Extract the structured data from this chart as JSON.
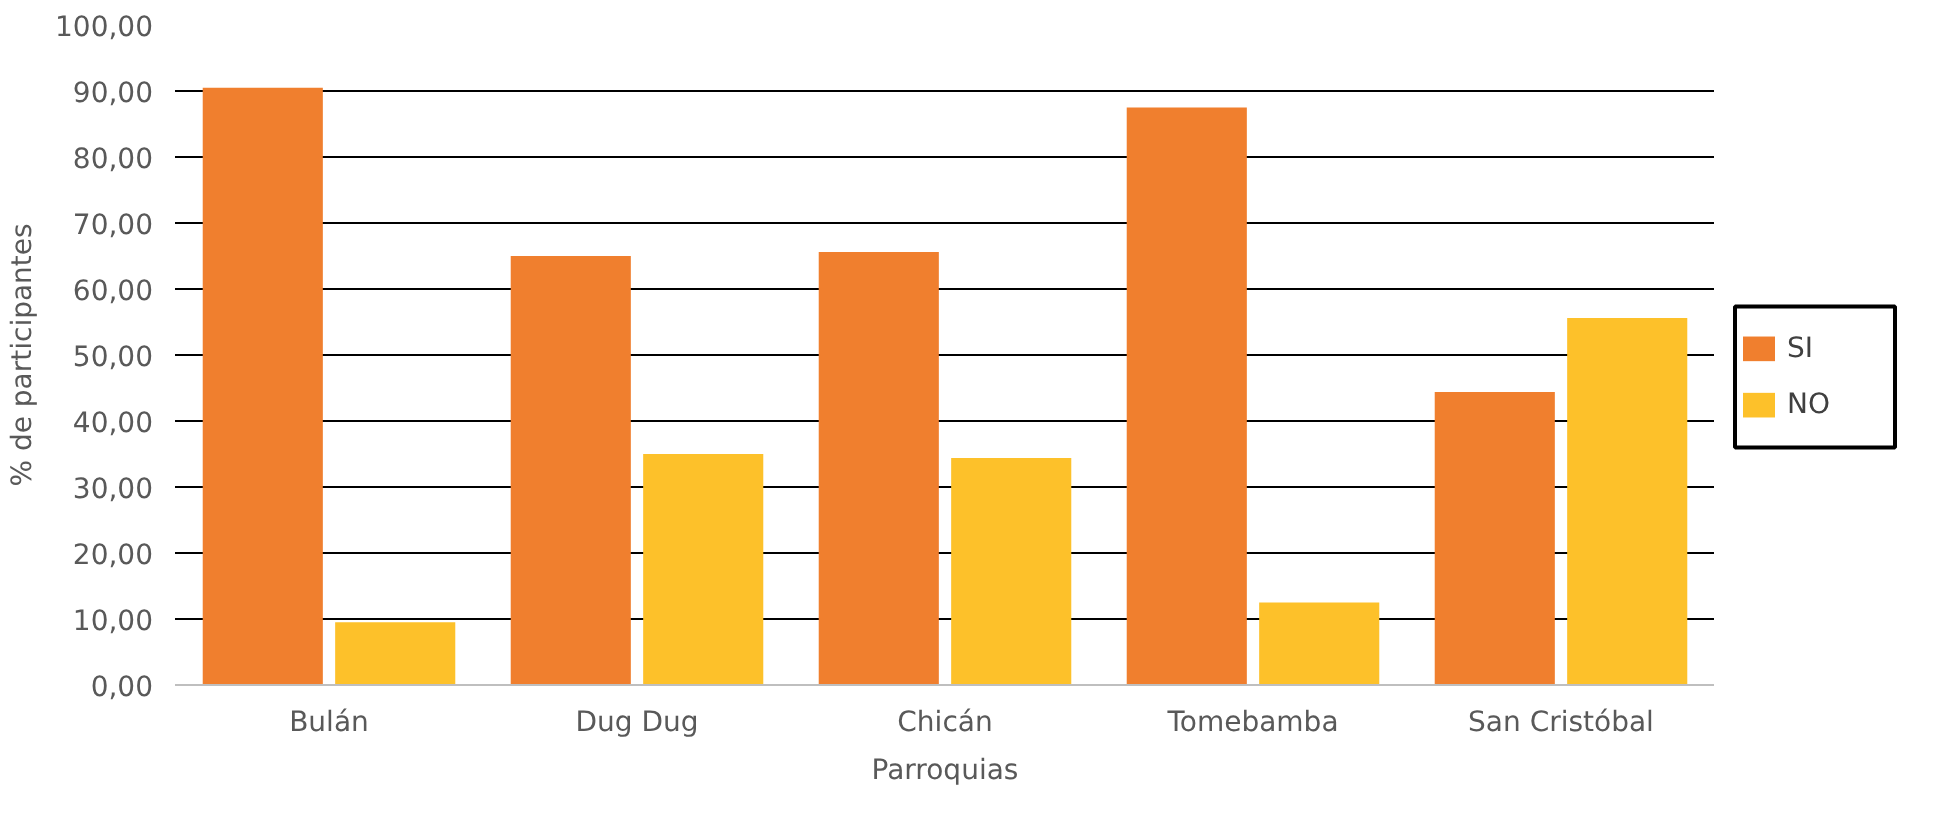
{
  "chart_data": {
    "type": "bar",
    "xlabel": "Parroquias",
    "ylabel": "% de participantes",
    "categories": [
      "Bulán",
      "Dug Dug",
      "Chicán",
      "Tomebamba",
      "San Cristóbal"
    ],
    "series": [
      {
        "name": "SI",
        "color": "#f07f2e",
        "values": [
          90.5,
          65.0,
          65.6,
          87.5,
          44.4
        ]
      },
      {
        "name": "NO",
        "color": "#fdc12a",
        "values": [
          9.5,
          35.0,
          34.4,
          12.5,
          55.6
        ]
      }
    ],
    "ylim": [
      0,
      100
    ],
    "yticks": [
      {
        "value": 0,
        "label": "0,00"
      },
      {
        "value": 10,
        "label": "10,00"
      },
      {
        "value": 20,
        "label": "20,00"
      },
      {
        "value": 30,
        "label": "30,00"
      },
      {
        "value": 40,
        "label": "40,00"
      },
      {
        "value": 50,
        "label": "50,00"
      },
      {
        "value": 60,
        "label": "60,00"
      },
      {
        "value": 70,
        "label": "70,00"
      },
      {
        "value": 80,
        "label": "80,00"
      },
      {
        "value": 90,
        "label": "90,00"
      },
      {
        "value": 100,
        "label": "100,00"
      }
    ],
    "grid": "y",
    "legend": "right"
  }
}
